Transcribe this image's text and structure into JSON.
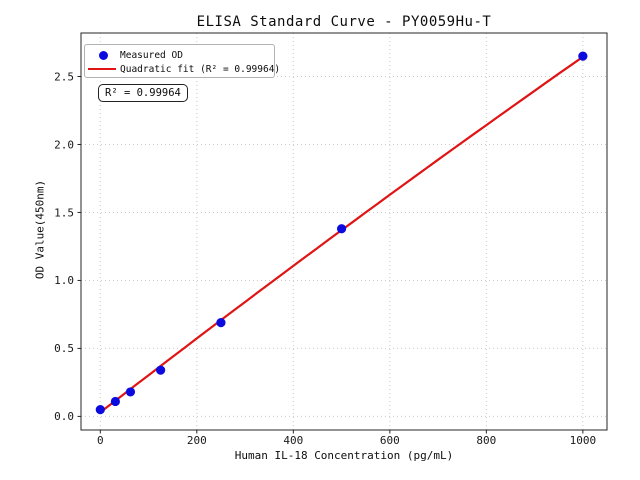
{
  "chart_data": {
    "type": "scatter",
    "title": "ELISA Standard Curve - PY0059Hu-T",
    "xlabel": "Human IL-18 Concentration (pg/mL)",
    "ylabel": "OD Value(450nm)",
    "xlim": [
      -40,
      1050
    ],
    "ylim": [
      -0.1,
      2.82
    ],
    "xticks": {
      "values": [
        0,
        200,
        400,
        600,
        800,
        1000
      ],
      "labels": [
        "0",
        "200",
        "400",
        "600",
        "800",
        "1000"
      ]
    },
    "yticks": {
      "values": [
        0.0,
        0.5,
        1.0,
        1.5,
        2.0,
        2.5
      ],
      "labels": [
        "0.0",
        "0.5",
        "1.0",
        "1.5",
        "2.0",
        "2.5"
      ]
    },
    "grid": {
      "show": true,
      "color": "#c9c9c9",
      "style": "dotted"
    },
    "series": [
      {
        "name": "Measured OD",
        "type": "scatter",
        "color": "#0b0bdf",
        "x": [
          0,
          31.25,
          62.5,
          125,
          250,
          500,
          1000
        ],
        "y": [
          0.05,
          0.11,
          0.18,
          0.34,
          0.69,
          1.38,
          2.65
        ]
      },
      {
        "name": "Quadratic fit (R² = 0.99964)",
        "type": "line",
        "color": "#e01414",
        "fit": {
          "coefficients": [
            0.03,
            0.002745,
            -1.3e-07
          ],
          "x_range": [
            0,
            1000
          ]
        }
      }
    ],
    "legend": {
      "position": "upper left"
    },
    "annotation": {
      "text": "R² = 0.99964"
    },
    "axis_color": "#262626",
    "tick_label_color": "#191919"
  }
}
